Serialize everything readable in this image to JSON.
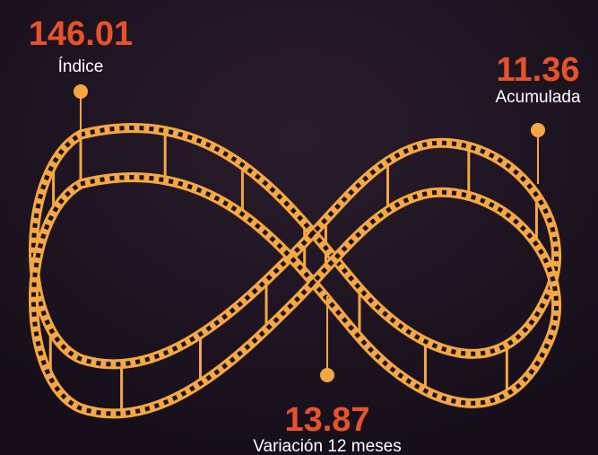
{
  "stats": [
    {
      "value": 146.01,
      "label": "Índice"
    },
    {
      "value": 11.36,
      "label": "Acumulada"
    },
    {
      "value": 13.87,
      "label": "Variación 12 meses"
    }
  ]
}
